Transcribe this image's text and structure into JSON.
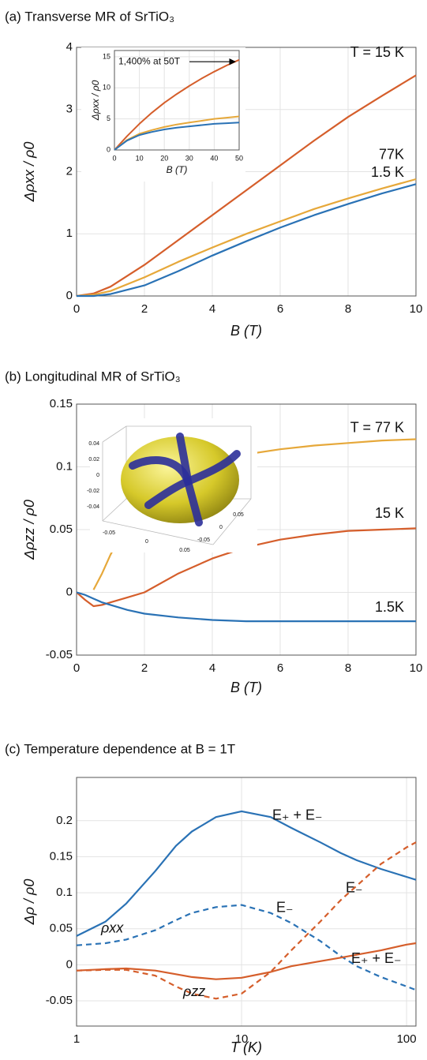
{
  "chart_data": [
    {
      "type": "line",
      "title": "(a) Transverse MR of SrTiO₃",
      "x_label": "B (T)",
      "y_label": "Δρxx / ρ0",
      "x": [
        0,
        0.5,
        1,
        2,
        3,
        4,
        5,
        6,
        7,
        8,
        9,
        10
      ],
      "series": [
        {
          "name": "T = 15 K",
          "color": "#d55e2b",
          "values": [
            0,
            0.04,
            0.15,
            0.5,
            0.9,
            1.3,
            1.7,
            2.1,
            2.5,
            2.88,
            3.22,
            3.55
          ]
        },
        {
          "name": "77K",
          "color": "#e6a83a",
          "values": [
            0,
            0.02,
            0.08,
            0.3,
            0.55,
            0.78,
            1.0,
            1.2,
            1.4,
            1.57,
            1.73,
            1.88
          ]
        },
        {
          "name": "1.5 K",
          "color": "#2a72b5",
          "values": [
            0,
            0.0,
            0.03,
            0.17,
            0.4,
            0.65,
            0.88,
            1.1,
            1.3,
            1.48,
            1.65,
            1.8
          ]
        }
      ],
      "xlim": [
        0,
        10
      ],
      "ylim": [
        0,
        4
      ],
      "xticks": [
        0,
        2,
        4,
        6,
        8,
        10
      ],
      "yticks": [
        0,
        1,
        2,
        3,
        4
      ],
      "grid": true
    },
    {
      "type": "line",
      "x_label": "B (T)",
      "y_label": "Δρxx / ρ0",
      "annotation": "1,400% at 50T",
      "x": [
        0,
        5,
        10,
        15,
        20,
        25,
        30,
        35,
        40,
        45,
        50
      ],
      "series": [
        {
          "color": "#d55e2b",
          "values": [
            0,
            2.2,
            4.2,
            6.0,
            7.6,
            9.0,
            10.3,
            11.5,
            12.6,
            13.6,
            14.5
          ]
        },
        {
          "color": "#e6a83a",
          "values": [
            0,
            1.6,
            2.6,
            3.2,
            3.7,
            4.1,
            4.4,
            4.7,
            5.0,
            5.2,
            5.4
          ]
        },
        {
          "color": "#2a72b5",
          "values": [
            0,
            1.5,
            2.4,
            2.9,
            3.3,
            3.6,
            3.8,
            4.0,
            4.2,
            4.3,
            4.4
          ]
        }
      ],
      "xlim": [
        0,
        50
      ],
      "ylim": [
        0,
        16
      ],
      "xticks": [
        0,
        10,
        20,
        30,
        40,
        50
      ],
      "yticks": [
        0,
        5,
        10,
        15
      ],
      "grid": true
    },
    {
      "type": "line",
      "title": "(b) Longitudinal MR of SrTiO₃",
      "x_label": "B (T)",
      "y_label": "Δρzz / ρ0",
      "x": [
        0,
        0.25,
        0.5,
        0.75,
        1,
        1.5,
        2,
        3,
        4,
        5,
        6,
        7,
        8,
        9,
        10
      ],
      "series": [
        {
          "name": "T = 77 K",
          "color": "#e6a83a",
          "values": [
            null,
            null,
            0.002,
            0.015,
            0.03,
            0.055,
            0.07,
            0.09,
            0.102,
            0.11,
            0.114,
            0.117,
            0.119,
            0.121,
            0.122
          ]
        },
        {
          "name": "15 K",
          "color": "#d55e2b",
          "values": [
            0,
            -0.006,
            -0.011,
            -0.01,
            -0.008,
            -0.004,
            0.0,
            0.015,
            0.027,
            0.036,
            0.042,
            0.046,
            0.049,
            0.05,
            0.051
          ]
        },
        {
          "name": "1.5K",
          "color": "#2a72b5",
          "values": [
            0,
            -0.002,
            -0.005,
            -0.008,
            -0.01,
            -0.014,
            -0.017,
            -0.02,
            -0.022,
            -0.023,
            -0.023,
            -0.023,
            -0.023,
            -0.023,
            -0.023
          ]
        }
      ],
      "xlim": [
        0,
        10
      ],
      "ylim": [
        -0.05,
        0.15
      ],
      "xticks": [
        0,
        2,
        4,
        6,
        8,
        10
      ],
      "yticks": [
        -0.05,
        0,
        0.05,
        0.1,
        0.15
      ],
      "grid": true
    },
    {
      "type": "surface3d",
      "zticks": [
        0.04,
        0.02,
        0,
        -0.02,
        -0.04
      ],
      "xticks": [
        -0.05,
        0,
        0.05
      ],
      "yticks": [
        0.05,
        0,
        -0.05
      ]
    },
    {
      "type": "line",
      "title": "(c) Temperature dependence at B = 1T",
      "x_label": "T (K)",
      "y_label": "Δρ / ρ0",
      "annotations": [
        "ρxx",
        "ρzz"
      ],
      "log_x": true,
      "x": [
        1,
        1.5,
        2,
        3,
        4,
        5,
        7,
        10,
        15,
        20,
        30,
        40,
        50,
        70,
        100,
        114
      ],
      "series": [
        {
          "name": "E₊ + E₋",
          "color": "#2a72b5",
          "dash": false,
          "values": [
            0.04,
            0.06,
            0.085,
            0.13,
            0.165,
            0.185,
            0.205,
            0.213,
            0.205,
            0.19,
            0.17,
            0.155,
            0.145,
            0.133,
            0.122,
            0.118
          ]
        },
        {
          "name": "E₋",
          "color": "#2a72b5",
          "dash": true,
          "values": [
            0.027,
            0.03,
            0.035,
            0.048,
            0.062,
            0.072,
            0.08,
            0.083,
            0.072,
            0.058,
            0.033,
            0.012,
            -0.002,
            -0.017,
            -0.03,
            -0.035
          ]
        },
        {
          "name": "E₊ + E₋",
          "color": "#d55e2b",
          "dash": false,
          "values": [
            -0.008,
            -0.006,
            -0.005,
            -0.008,
            -0.013,
            -0.017,
            -0.02,
            -0.018,
            -0.01,
            -0.002,
            0.005,
            0.01,
            0.014,
            0.02,
            0.028,
            0.03
          ]
        },
        {
          "name": "E₋",
          "color": "#d55e2b",
          "dash": true,
          "values": [
            -0.008,
            -0.007,
            -0.007,
            -0.015,
            -0.03,
            -0.04,
            -0.047,
            -0.04,
            -0.01,
            0.02,
            0.06,
            0.09,
            0.11,
            0.14,
            0.163,
            0.17
          ]
        }
      ],
      "xlim": [
        1,
        114
      ],
      "ylim": [
        -0.085,
        0.26
      ],
      "xticks": [
        1,
        10,
        100
      ],
      "yticks": [
        -0.05,
        0,
        0.05,
        0.1,
        0.15,
        0.2
      ],
      "grid": true
    }
  ]
}
